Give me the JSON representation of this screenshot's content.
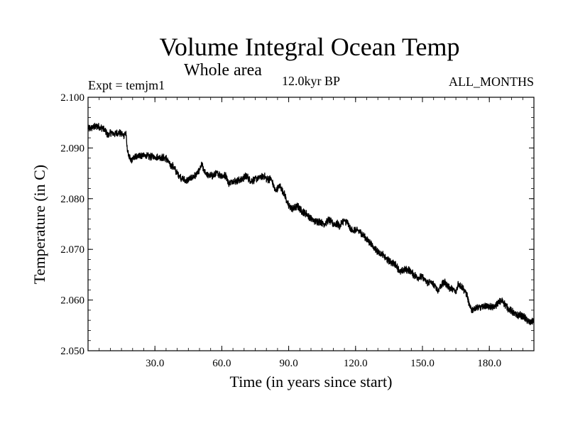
{
  "chart_data": {
    "type": "line",
    "title": "Volume Integral Ocean Temp",
    "subtitle": "Whole area",
    "annotations": {
      "left": "Expt = temjm1",
      "center": "12.0kyr BP",
      "right": "ALL_MONTHS"
    },
    "xlabel": "Time (in years since start)",
    "ylabel": "Temperature (in C)",
    "xlim": [
      0,
      200
    ],
    "ylim": [
      2.05,
      2.1
    ],
    "x_ticks": [
      30.0,
      60.0,
      90.0,
      120.0,
      150.0,
      180.0
    ],
    "x_tick_labels": [
      "30.0",
      "60.0",
      "90.0",
      "120.0",
      "150.0",
      "180.0"
    ],
    "y_ticks": [
      2.05,
      2.06,
      2.07,
      2.08,
      2.09,
      2.1
    ],
    "y_tick_labels": [
      "2.050",
      "2.060",
      "2.070",
      "2.080",
      "2.090",
      "2.100"
    ],
    "grid": false,
    "line_color": "#000000",
    "series": [
      {
        "name": "Volume integral ocean temperature",
        "trend_x": [
          0,
          4,
          7,
          9,
          10,
          12,
          14,
          16,
          17,
          17.5,
          18,
          19,
          20,
          22,
          25,
          28,
          32,
          35,
          37,
          38,
          40,
          42,
          44,
          46,
          48,
          50,
          51,
          52,
          54,
          56,
          58,
          60,
          62,
          63,
          65,
          67,
          69,
          71,
          73,
          75,
          77,
          79,
          80,
          81,
          82,
          83,
          84,
          86,
          88,
          90,
          92,
          94,
          96,
          98,
          100,
          102,
          104,
          106,
          108,
          110,
          112,
          113,
          114,
          116,
          118,
          120,
          122,
          124,
          126,
          128,
          130,
          132,
          134,
          136,
          138,
          140,
          142,
          144,
          146,
          148,
          150,
          152,
          154,
          156,
          157,
          158,
          160,
          162,
          164,
          165,
          166,
          168,
          170,
          171,
          172,
          174,
          176,
          178,
          180,
          182,
          184,
          186,
          188,
          190,
          192,
          194,
          196,
          198,
          200
        ],
        "trend_y": [
          2.0938,
          2.0943,
          2.0938,
          2.0925,
          2.093,
          2.0928,
          2.093,
          2.0925,
          2.093,
          2.09,
          2.089,
          2.0875,
          2.0878,
          2.0885,
          2.0885,
          2.0883,
          2.0882,
          2.088,
          2.0865,
          2.0865,
          2.085,
          2.084,
          2.0835,
          2.084,
          2.0845,
          2.0855,
          2.0868,
          2.0855,
          2.0845,
          2.0845,
          2.085,
          2.0845,
          2.0845,
          2.083,
          2.0835,
          2.0835,
          2.0838,
          2.0845,
          2.0835,
          2.0838,
          2.0842,
          2.0845,
          2.0838,
          2.0838,
          2.084,
          2.0828,
          2.0815,
          2.0825,
          2.081,
          2.0785,
          2.078,
          2.0785,
          2.0775,
          2.077,
          2.076,
          2.0755,
          2.0755,
          2.075,
          2.0758,
          2.075,
          2.075,
          2.0745,
          2.0755,
          2.0755,
          2.0738,
          2.0738,
          2.0735,
          2.0725,
          2.0715,
          2.0705,
          2.0695,
          2.069,
          2.068,
          2.0675,
          2.067,
          2.0655,
          2.066,
          2.066,
          2.065,
          2.0645,
          2.0645,
          2.0635,
          2.0635,
          2.0625,
          2.0618,
          2.0628,
          2.0635,
          2.0625,
          2.062,
          2.0615,
          2.0632,
          2.0625,
          2.061,
          2.059,
          2.058,
          2.0585,
          2.0585,
          2.0588,
          2.0588,
          2.0585,
          2.0595,
          2.0598,
          2.0585,
          2.0578,
          2.057,
          2.057,
          2.0565,
          2.0555,
          2.056
        ],
        "noise_amplitude": 0.0006
      }
    ]
  }
}
